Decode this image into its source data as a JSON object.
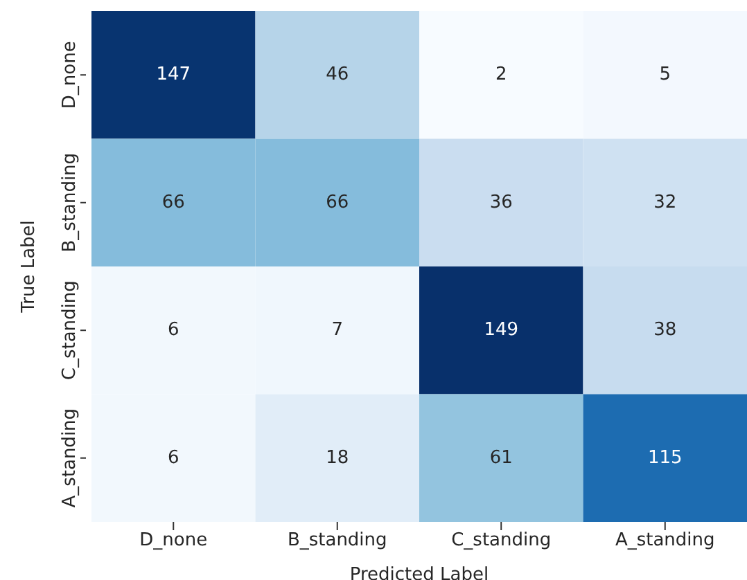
{
  "chart_data": {
    "type": "heatmap",
    "xlabel": "Predicted Label",
    "ylabel": "True Label",
    "categories": [
      "D_none",
      "B_standing",
      "C_standing",
      "A_standing"
    ],
    "y_categories": [
      "D_none",
      "B_standing",
      "C_standing",
      "A_standing"
    ],
    "cells": [
      [
        147,
        46,
        2,
        5
      ],
      [
        66,
        66,
        36,
        32
      ],
      [
        6,
        7,
        149,
        38
      ],
      [
        6,
        18,
        61,
        115
      ]
    ],
    "data_labels": true
  }
}
